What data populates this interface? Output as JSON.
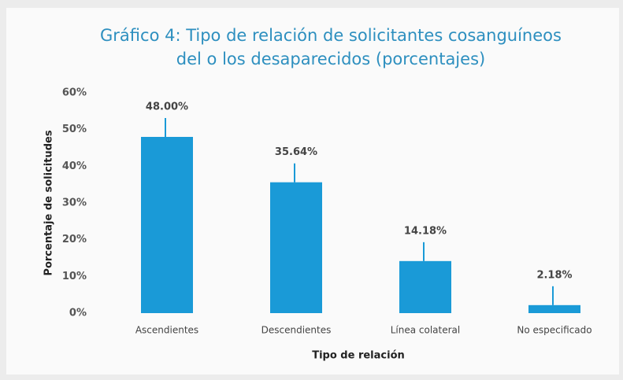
{
  "chart_data": {
    "type": "bar",
    "title": [
      "Gráfico 4: Tipo de relación de solicitantes cosanguíneos",
      "del o los desaparecidos (porcentajes)"
    ],
    "x_label": "Tipo de relación",
    "y_label": "Porcentaje de solicitudes",
    "categories": [
      "Ascendientes",
      "Descendientes",
      "Línea colateral",
      "No especificado"
    ],
    "values": [
      48.0,
      35.64,
      14.18,
      2.18
    ],
    "value_labels": [
      "48.00%",
      "35.64%",
      "14.18%",
      "2.18%"
    ],
    "color": "#1a9ad7",
    "ylim": [
      0,
      60
    ],
    "yticks": [
      {
        "value": 0,
        "label": "0%"
      },
      {
        "value": 10,
        "label": "10%"
      },
      {
        "value": 20,
        "label": "20%"
      },
      {
        "value": 30,
        "label": "30%"
      },
      {
        "value": 40,
        "label": "40%"
      },
      {
        "value": 50,
        "label": "50%"
      },
      {
        "value": 60,
        "label": "60%"
      }
    ],
    "grid": false
  }
}
